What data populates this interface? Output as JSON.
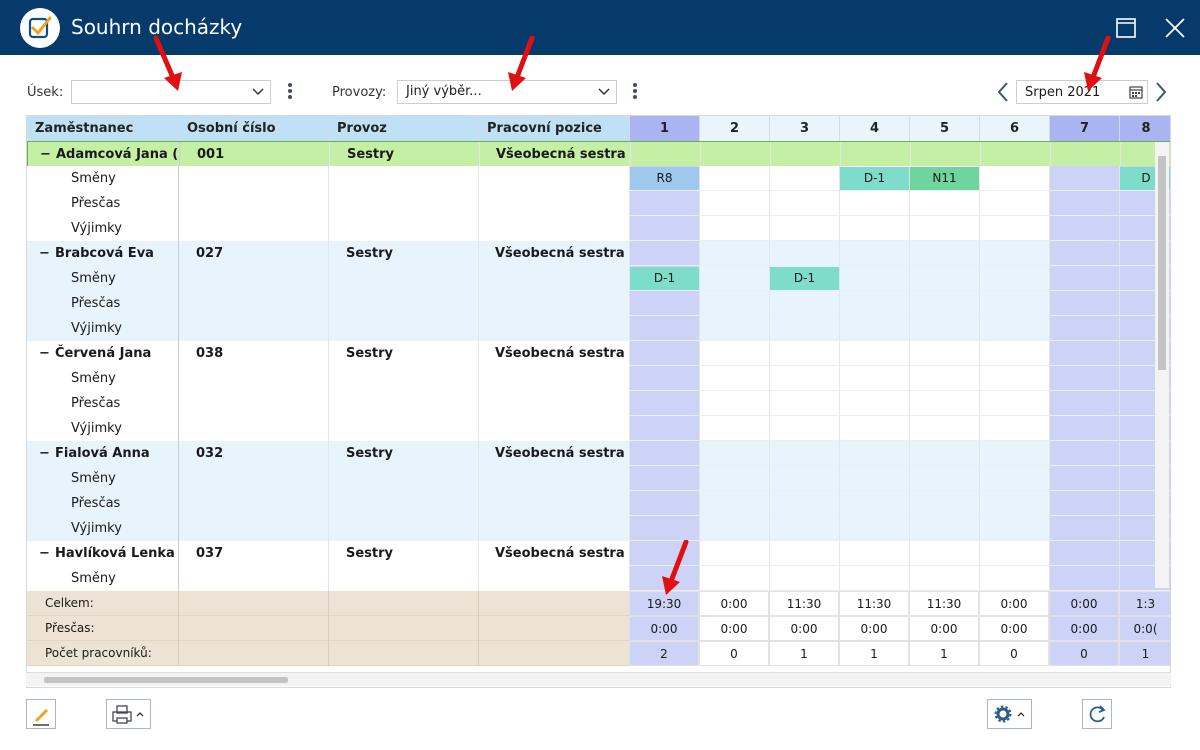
{
  "window": {
    "title": "Souhrn docházky"
  },
  "filters": {
    "usek_label": "Úsek:",
    "usek_value": "",
    "provozy_label": "Provozy:",
    "provozy_value": "Jiný výběr...",
    "month_value": "Srpen 2021"
  },
  "columns": {
    "employee": "Zaměstnanec",
    "personal_number": "Osobní číslo",
    "operation": "Provoz",
    "position": "Pracovní pozice",
    "days": [
      "1",
      "2",
      "3",
      "4",
      "5",
      "6",
      "7",
      "8"
    ]
  },
  "sub_rows": [
    "Směny",
    "Přesčas",
    "Výjimky"
  ],
  "employees": [
    {
      "name": "Adamcová Jana (...",
      "number": "001",
      "operation": "Sestry",
      "position": "Všeobecná sestra",
      "shifts": [
        "R8",
        "",
        "",
        "D-1",
        "N11",
        "",
        "",
        "D"
      ]
    },
    {
      "name": "Brabcová Eva",
      "number": "027",
      "operation": "Sestry",
      "position": "Všeobecná sestra",
      "shifts": [
        "D-1",
        "",
        "D-1",
        "",
        "",
        "",
        "",
        ""
      ]
    },
    {
      "name": "Červená Jana",
      "number": "038",
      "operation": "Sestry",
      "position": "Všeobecná sestra",
      "shifts": [
        "",
        "",
        "",
        "",
        "",
        "",
        "",
        ""
      ]
    },
    {
      "name": "Fialová Anna",
      "number": "032",
      "operation": "Sestry",
      "position": "Všeobecná sestra",
      "shifts": [
        "",
        "",
        "",
        "",
        "",
        "",
        "",
        ""
      ]
    },
    {
      "name": "Havlíková Lenka",
      "number": "037",
      "operation": "Sestry",
      "position": "Všeobecná sestra",
      "shifts": [
        "",
        "",
        "",
        "",
        "",
        "",
        "",
        ""
      ]
    }
  ],
  "footer": {
    "labels": [
      "Celkem:",
      "Přesčas:",
      "Počet pracovníků:"
    ],
    "celkem": [
      "19:30",
      "0:00",
      "11:30",
      "11:30",
      "11:30",
      "0:00",
      "0:00",
      "1:3"
    ],
    "prescas": [
      "0:00",
      "0:00",
      "0:00",
      "0:00",
      "0:00",
      "0:00",
      "0:00",
      "0:0("
    ],
    "pocet": [
      "2",
      "0",
      "1",
      "1",
      "1",
      "0",
      "0",
      "1"
    ]
  },
  "colors": {
    "title_bar": "#063a6b",
    "header_bg": "#bfe0f5",
    "selected_row": "#c4efa5",
    "weekend_col": "#ccd3f7",
    "shift_blue": "#9fc9ec",
    "shift_teal": "#7ddcca",
    "shift_green": "#6ed59f",
    "footer_bg": "#ece3d4"
  },
  "icons": {
    "app": "checkmark-logo-icon",
    "maximize": "maximize-icon",
    "close": "close-icon",
    "edit": "pencil-icon",
    "print": "printer-icon",
    "settings": "gear-icon",
    "refresh": "refresh-icon",
    "calendar": "calendar-icon"
  }
}
